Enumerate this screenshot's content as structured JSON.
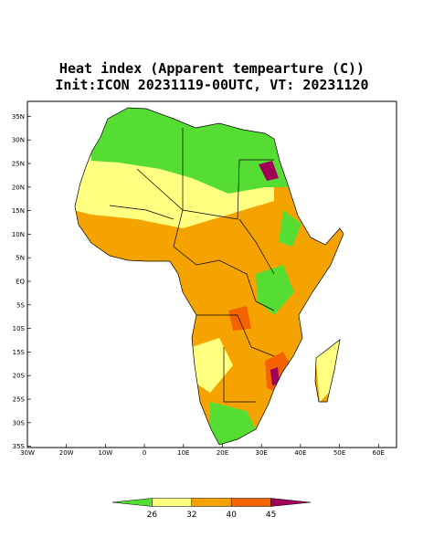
{
  "map": {
    "title": "Heat index (Apparent tempearture (C))",
    "subtitle": "Init:ICON 20231119-00UTC, VT: 20231120",
    "lon_ticks": [
      {
        "value": -30,
        "label": "30W"
      },
      {
        "value": -20,
        "label": "20W"
      },
      {
        "value": -10,
        "label": "10W"
      },
      {
        "value": 0,
        "label": "0"
      },
      {
        "value": 10,
        "label": "10E"
      },
      {
        "value": 20,
        "label": "20E"
      },
      {
        "value": 30,
        "label": "30E"
      },
      {
        "value": 40,
        "label": "40E"
      },
      {
        "value": 50,
        "label": "50E"
      },
      {
        "value": 60,
        "label": "60E"
      }
    ],
    "lat_ticks": [
      {
        "value": 35,
        "label": "35N"
      },
      {
        "value": 30,
        "label": "30N"
      },
      {
        "value": 25,
        "label": "25N"
      },
      {
        "value": 20,
        "label": "20N"
      },
      {
        "value": 15,
        "label": "15N"
      },
      {
        "value": 10,
        "label": "10N"
      },
      {
        "value": 5,
        "label": "5N"
      },
      {
        "value": 0,
        "label": "EQ"
      },
      {
        "value": -5,
        "label": "5S"
      },
      {
        "value": -10,
        "label": "10S"
      },
      {
        "value": -15,
        "label": "15S"
      },
      {
        "value": -20,
        "label": "20S"
      },
      {
        "value": -25,
        "label": "25S"
      },
      {
        "value": -30,
        "label": "30S"
      },
      {
        "value": -35,
        "label": "35S"
      }
    ],
    "colorbar": {
      "levels": [
        26,
        32,
        40,
        45
      ],
      "colors": [
        "#55dd33",
        "#ffff80",
        "#f5a300",
        "#f56300",
        "#a0005a"
      ]
    }
  }
}
